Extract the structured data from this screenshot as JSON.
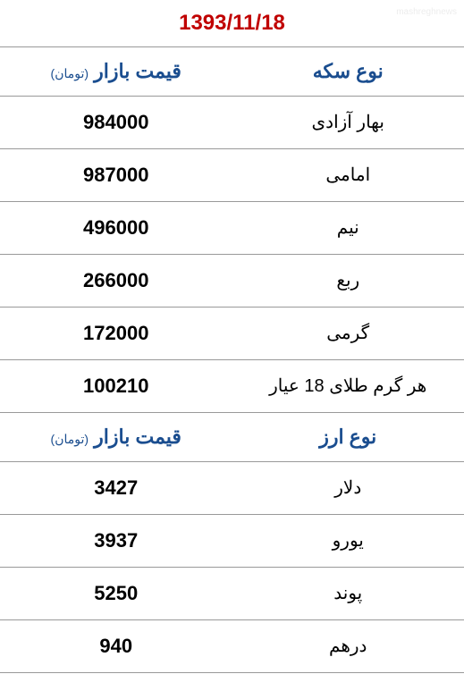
{
  "date": "1393/11/18",
  "coin_table": {
    "header_type": "نوع سکه",
    "header_price": "قیمت بازار",
    "header_unit": "(تومان)",
    "rows": [
      {
        "name": "بهار آزادی",
        "price": "984000"
      },
      {
        "name": "امامی",
        "price": "987000"
      },
      {
        "name": "نیم",
        "price": "496000"
      },
      {
        "name": "ربع",
        "price": "266000"
      },
      {
        "name": "گرمی",
        "price": "172000"
      },
      {
        "name": "هر گرم طلای 18 عیار",
        "price": "100210"
      }
    ]
  },
  "currency_table": {
    "header_type": "نوع ارز",
    "header_price": "قیمت بازار",
    "header_unit": "(تومان)",
    "rows": [
      {
        "name": "دلار",
        "price": "3427"
      },
      {
        "name": "یورو",
        "price": "3937"
      },
      {
        "name": "پوند",
        "price": "5250"
      },
      {
        "name": "درهم",
        "price": "940"
      }
    ]
  },
  "colors": {
    "date_color": "#c00000",
    "header_color": "#1a4d8f",
    "text_color": "#000000",
    "border_color": "#999999",
    "background": "#ffffff"
  }
}
